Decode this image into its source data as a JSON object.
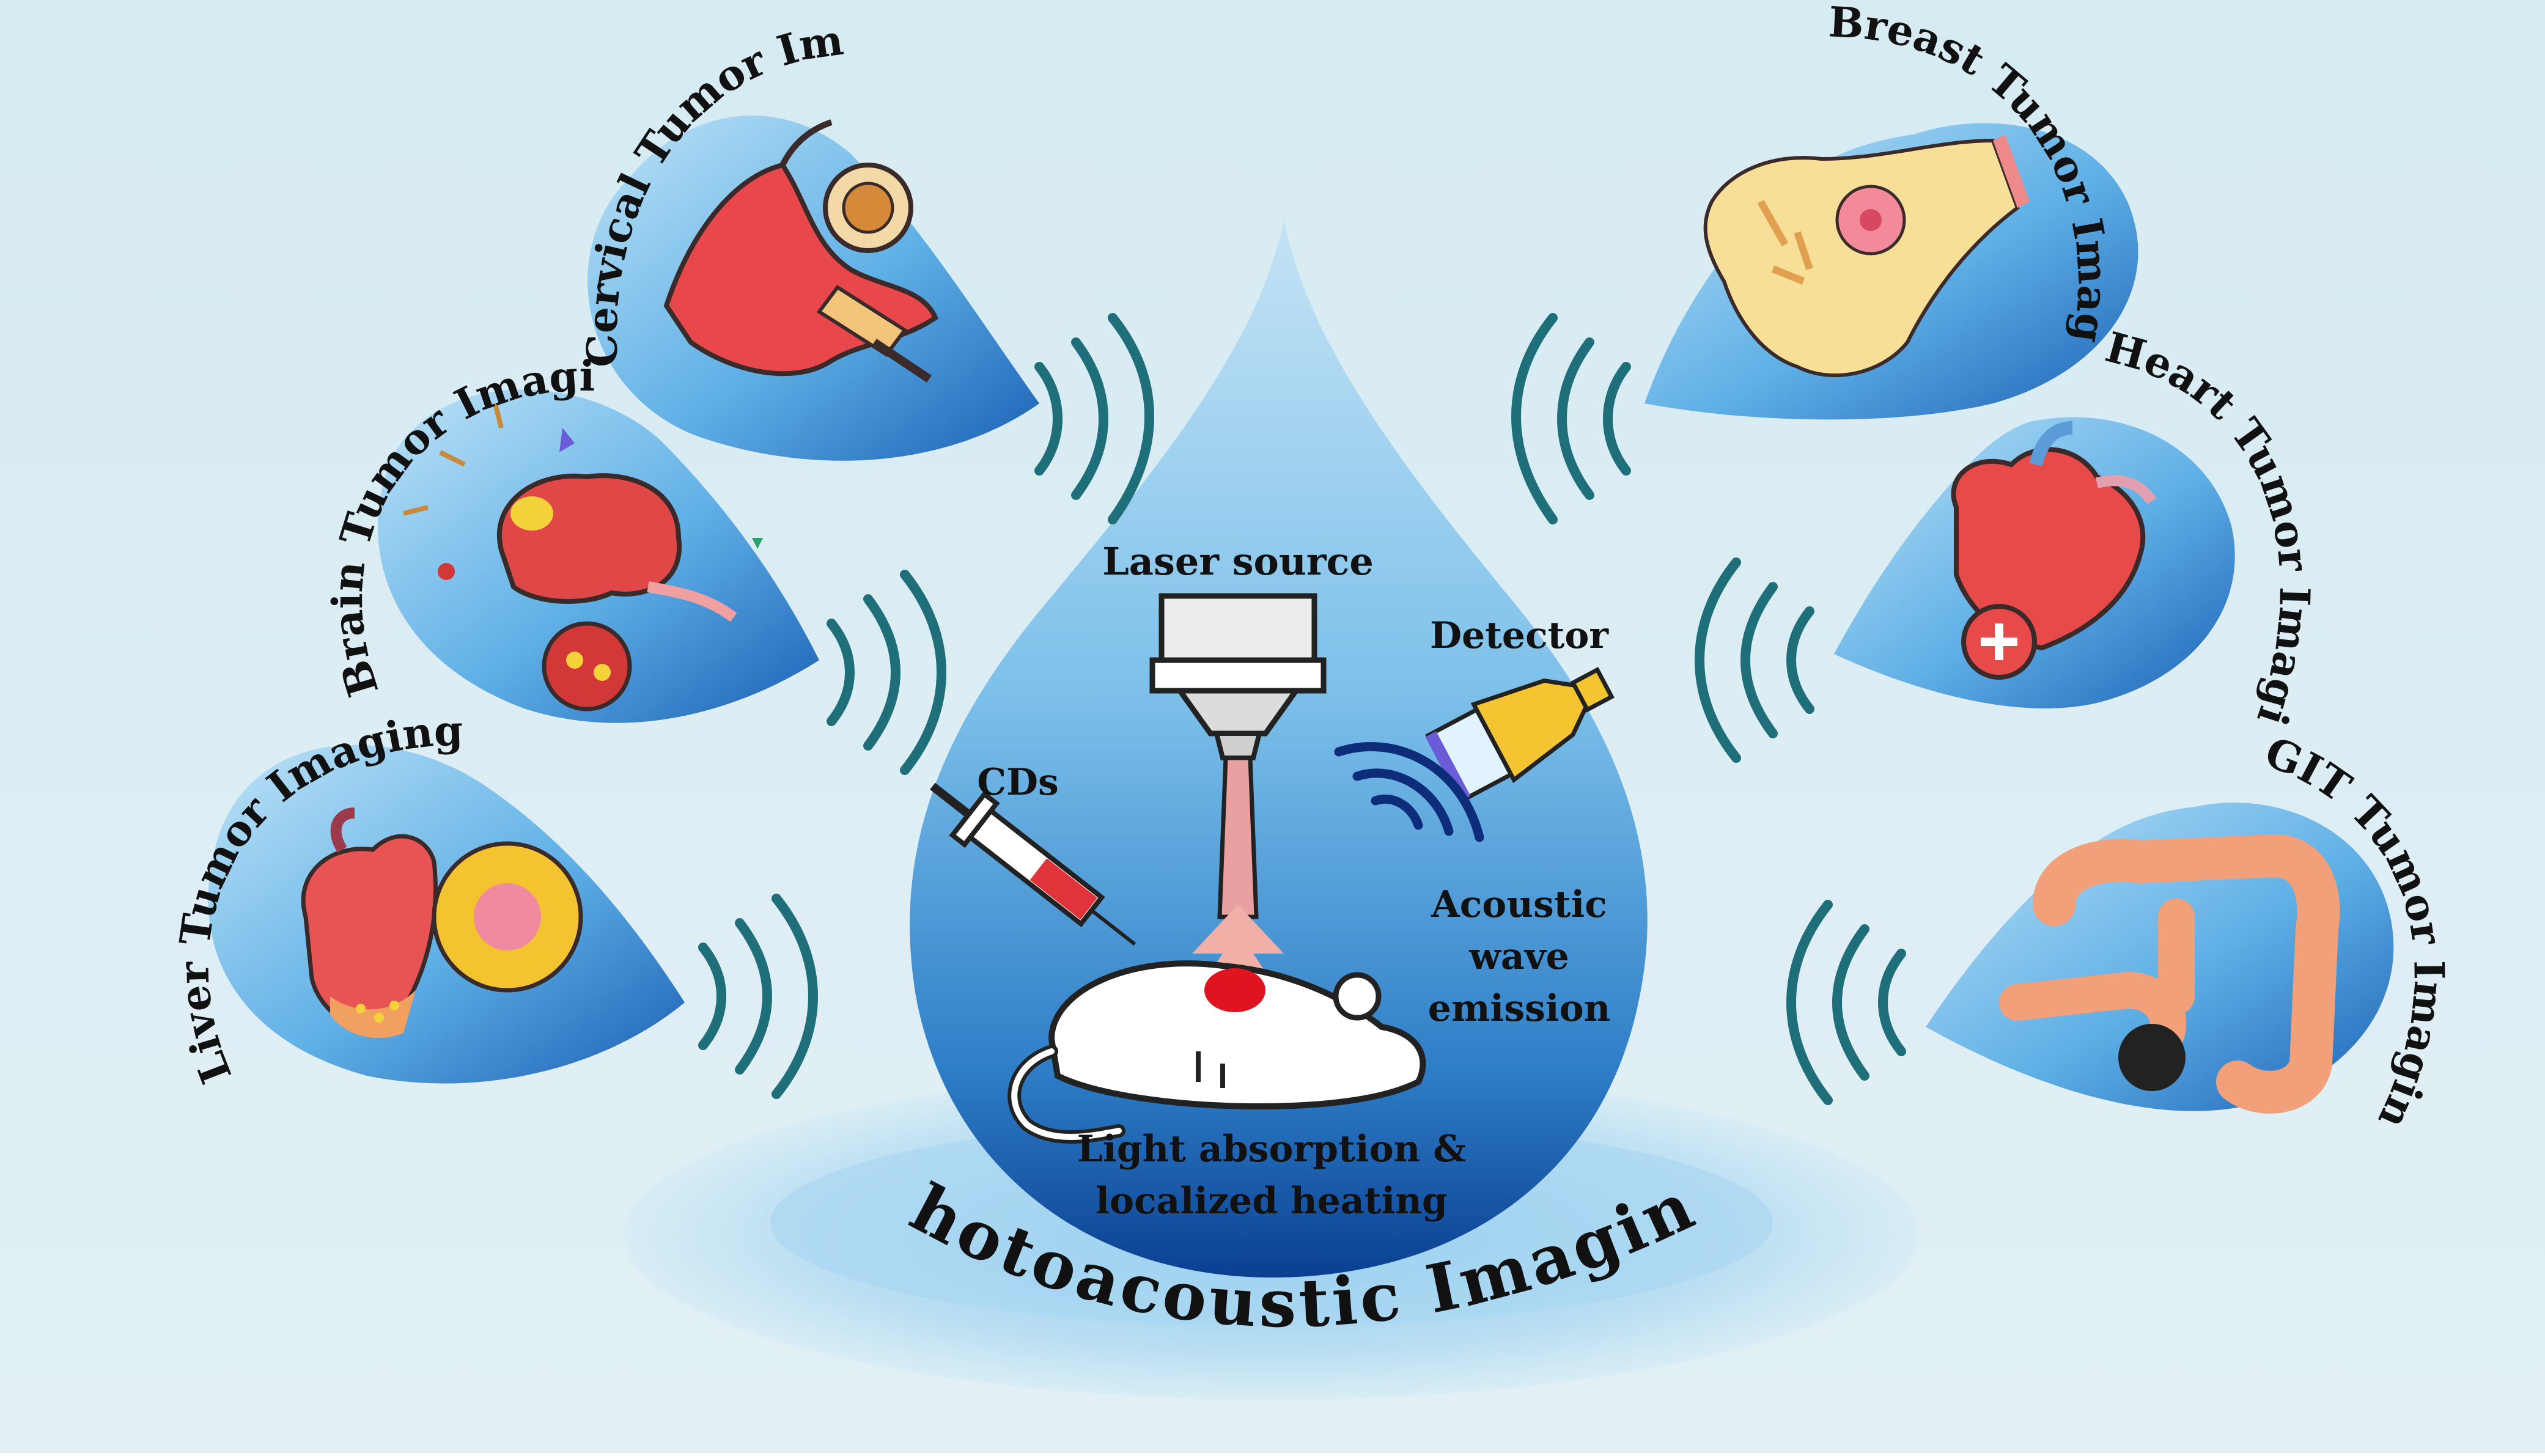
{
  "center": {
    "laser_label": "Laser source",
    "detector_label": "Detector",
    "cds_label": "CDs",
    "acoustic_lines": [
      "Acoustic",
      "wave",
      "emission"
    ],
    "absorption_lines": [
      "Light absorption &",
      "localized heating"
    ],
    "title": "Photoacoustic Imaging"
  },
  "organs": [
    {
      "label": "Cervical Tumor Imaging",
      "organ_icon": "uterus-icon"
    },
    {
      "label": "Brain Tumor Imaging",
      "organ_icon": "brain-icon"
    },
    {
      "label": "Liver Tumor Imaging",
      "organ_icon": "liver-icon"
    },
    {
      "label": "Breast Tumor Imaging",
      "organ_icon": "breast-icon"
    },
    {
      "label": "Heart Tumor Imaging",
      "organ_icon": "heart-icon"
    },
    {
      "label": "GIT Tumor Imaging",
      "organ_icon": "intestine-icon"
    }
  ],
  "colors": {
    "background": "#dcedf2",
    "drop_top": "#b8dcf0",
    "drop_bottom": "#0a4fa0",
    "wave": "#1f6f7a",
    "tumor": "#e01420",
    "laser_beam": "#e8a0a0"
  }
}
